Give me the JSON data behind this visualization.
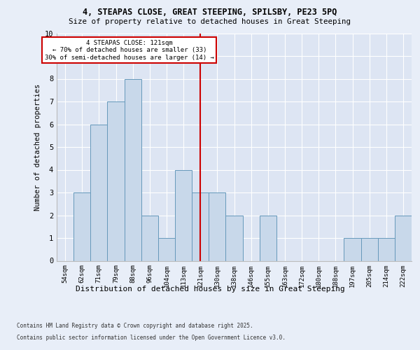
{
  "title_line1": "4, STEAPAS CLOSE, GREAT STEEPING, SPILSBY, PE23 5PQ",
  "title_line2": "Size of property relative to detached houses in Great Steeping",
  "xlabel": "Distribution of detached houses by size in Great Steeping",
  "ylabel": "Number of detached properties",
  "categories": [
    "54sqm",
    "62sqm",
    "71sqm",
    "79sqm",
    "88sqm",
    "96sqm",
    "104sqm",
    "113sqm",
    "121sqm",
    "130sqm",
    "138sqm",
    "146sqm",
    "155sqm",
    "163sqm",
    "172sqm",
    "180sqm",
    "188sqm",
    "197sqm",
    "205sqm",
    "214sqm",
    "222sqm"
  ],
  "values": [
    0,
    3,
    6,
    7,
    8,
    2,
    1,
    4,
    3,
    3,
    2,
    0,
    2,
    0,
    0,
    0,
    0,
    1,
    1,
    1,
    2
  ],
  "bar_color": "#c8d8ea",
  "bar_edge_color": "#6699bb",
  "bar_linewidth": 0.7,
  "vline_x_index": 8,
  "vline_color": "#cc0000",
  "annotation_text": "4 STEAPAS CLOSE: 121sqm\n← 70% of detached houses are smaller (33)\n30% of semi-detached houses are larger (14) →",
  "annotation_box_edgecolor": "#cc0000",
  "ylim": [
    0,
    10
  ],
  "yticks": [
    0,
    1,
    2,
    3,
    4,
    5,
    6,
    7,
    8,
    9,
    10
  ],
  "plot_bgcolor": "#dde5f3",
  "fig_bgcolor": "#e8eef8",
  "grid_color": "#ffffff",
  "footer_line1": "Contains HM Land Registry data © Crown copyright and database right 2025.",
  "footer_line2": "Contains public sector information licensed under the Open Government Licence v3.0."
}
